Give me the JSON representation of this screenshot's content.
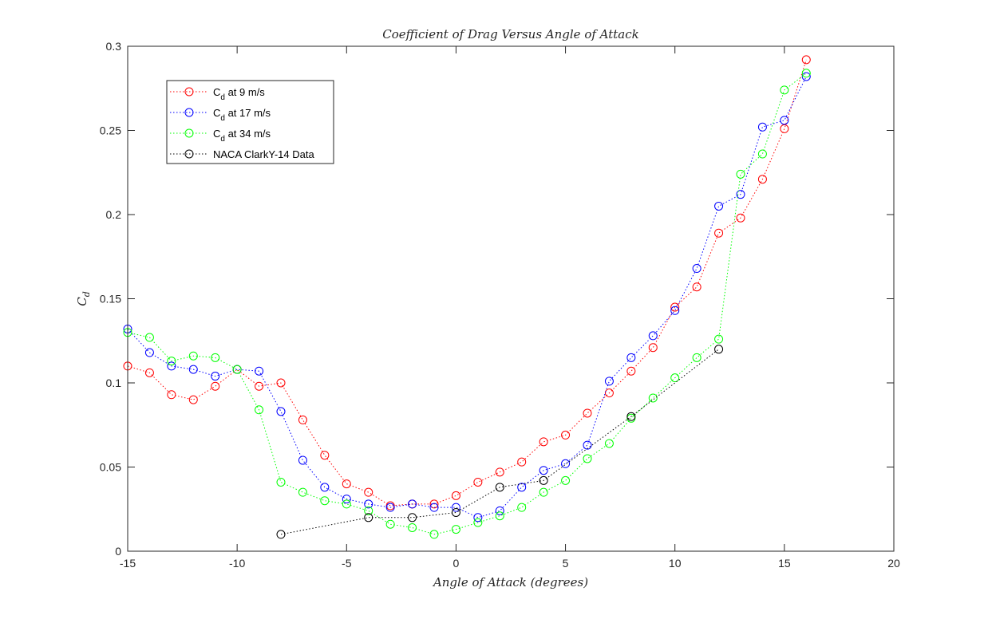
{
  "chart_data": {
    "type": "line",
    "title": "Coefficient of Drag Versus Angle of Attack",
    "xlabel": "Angle of Attack (degrees)",
    "ylabel": "C_d",
    "xlim": [
      -15,
      20
    ],
    "ylim": [
      0,
      0.3
    ],
    "x_ticks": [
      -15,
      -10,
      -5,
      0,
      5,
      10,
      15,
      20
    ],
    "y_ticks": [
      0,
      0.05,
      0.1,
      0.15,
      0.2,
      0.25,
      0.3
    ],
    "grid": false,
    "legend_position": "top-left",
    "line_style": "dotted",
    "marker": "circle",
    "series": [
      {
        "name": "C_d at 9 m/s",
        "legend_base": "C",
        "legend_sub": "d",
        "legend_rest": " at 9 m/s",
        "color": "#ff0000",
        "x": [
          -15,
          -14,
          -13,
          -12,
          -11,
          -10,
          -9,
          -8,
          -7,
          -6,
          -5,
          -4,
          -3,
          -2,
          -1,
          0,
          1,
          2,
          3,
          4,
          5,
          6,
          7,
          8,
          9,
          10,
          11,
          12,
          13,
          14,
          15,
          16
        ],
        "y": [
          0.11,
          0.106,
          0.093,
          0.09,
          0.098,
          0.108,
          0.098,
          0.1,
          0.078,
          0.057,
          0.04,
          0.035,
          0.027,
          0.028,
          0.028,
          0.033,
          0.041,
          0.047,
          0.053,
          0.065,
          0.069,
          0.082,
          0.094,
          0.107,
          0.121,
          0.145,
          0.157,
          0.189,
          0.198,
          0.221,
          0.251,
          0.292
        ]
      },
      {
        "name": "C_d at 17 m/s",
        "legend_base": "C",
        "legend_sub": "d",
        "legend_rest": " at 17 m/s",
        "color": "#0000ff",
        "x": [
          -15,
          -14,
          -13,
          -12,
          -11,
          -10,
          -9,
          -8,
          -7,
          -6,
          -5,
          -4,
          -3,
          -2,
          -1,
          0,
          1,
          2,
          3,
          4,
          5,
          6,
          7,
          8,
          9,
          10,
          11,
          12,
          13,
          14,
          15,
          16
        ],
        "y": [
          0.132,
          0.118,
          0.11,
          0.108,
          0.104,
          0.108,
          0.107,
          0.083,
          0.054,
          0.038,
          0.031,
          0.028,
          0.026,
          0.028,
          0.026,
          0.026,
          0.02,
          0.024,
          0.038,
          0.048,
          0.052,
          0.063,
          0.101,
          0.115,
          0.128,
          0.143,
          0.168,
          0.205,
          0.212,
          0.252,
          0.256,
          0.282
        ]
      },
      {
        "name": "C_d at 34 m/s",
        "legend_base": "C",
        "legend_sub": "d",
        "legend_rest": " at 34 m/s",
        "color": "#00ff00",
        "x": [
          -15,
          -14,
          -13,
          -12,
          -11,
          -10,
          -9,
          -8,
          -7,
          -6,
          -5,
          -4,
          -3,
          -2,
          -1,
          0,
          1,
          2,
          3,
          4,
          5,
          6,
          7,
          8,
          9,
          10,
          11,
          12,
          13,
          14,
          15,
          16
        ],
        "y": [
          0.13,
          0.127,
          0.113,
          0.116,
          0.115,
          0.108,
          0.084,
          0.041,
          0.035,
          0.03,
          0.028,
          0.024,
          0.016,
          0.014,
          0.01,
          0.013,
          0.017,
          0.021,
          0.026,
          0.035,
          0.042,
          0.055,
          0.064,
          0.079,
          0.091,
          0.103,
          0.115,
          0.126,
          0.224,
          0.236,
          0.274,
          0.284
        ]
      },
      {
        "name": "NACA ClarkY-14 Data",
        "legend_base": "NACA ClarkY-14 Data",
        "legend_sub": "",
        "legend_rest": "",
        "color": "#000000",
        "x": [
          -8,
          -4,
          -2,
          0,
          2,
          4,
          8,
          12
        ],
        "y": [
          0.01,
          0.02,
          0.02,
          0.023,
          0.038,
          0.042,
          0.08,
          0.12
        ]
      }
    ]
  }
}
